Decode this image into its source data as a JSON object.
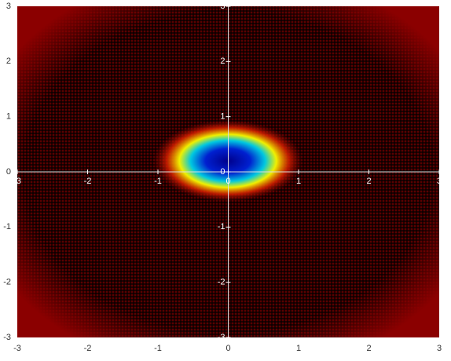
{
  "chart_data": {
    "type": "heatmap",
    "xlim": [
      -3,
      3
    ],
    "ylim": [
      -3,
      3
    ],
    "xticks": [
      -3,
      -2,
      -1,
      0,
      1,
      2,
      3
    ],
    "yticks": [
      -3,
      -2,
      -1,
      0,
      1,
      2,
      3
    ]
  }
}
